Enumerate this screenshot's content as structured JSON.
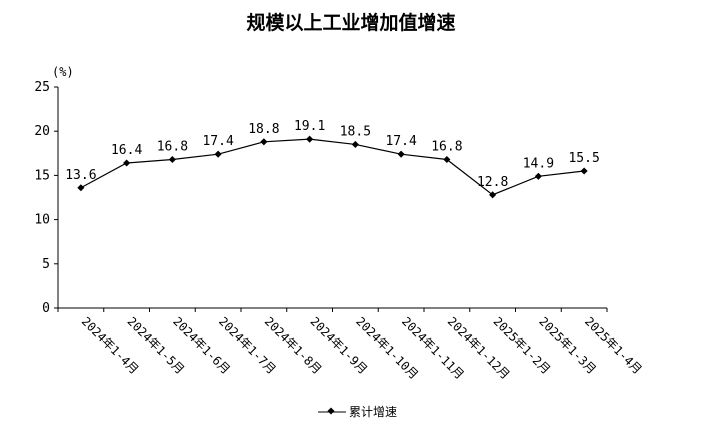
{
  "chart_data": {
    "type": "line",
    "title": "规模以上工业增加值增速",
    "unit_label": "(%)",
    "categories": [
      "2024年1-4月",
      "2024年1-5月",
      "2024年1-6月",
      "2024年1-7月",
      "2024年1-8月",
      "2024年1-9月",
      "2024年1-10月",
      "2024年1-11月",
      "2024年1-12月",
      "2025年1-2月",
      "2025年1-3月",
      "2025年1-4月"
    ],
    "series": [
      {
        "name": "累计增速",
        "values": [
          13.6,
          16.4,
          16.8,
          17.4,
          18.8,
          19.1,
          18.5,
          17.4,
          16.8,
          12.8,
          14.9,
          15.5
        ],
        "labels": [
          "13.6",
          "16.4",
          "16.8",
          "17.4",
          "18.8",
          "19.1",
          "18.5",
          "17.4",
          "16.8",
          "12.8",
          "14.9",
          "15.5"
        ],
        "color": "#000000"
      }
    ],
    "ylim": [
      0,
      25
    ],
    "yticks": [
      "0",
      "5",
      "10",
      "15",
      "20",
      "25"
    ],
    "grid": false,
    "legend_position": "bottom-center"
  }
}
